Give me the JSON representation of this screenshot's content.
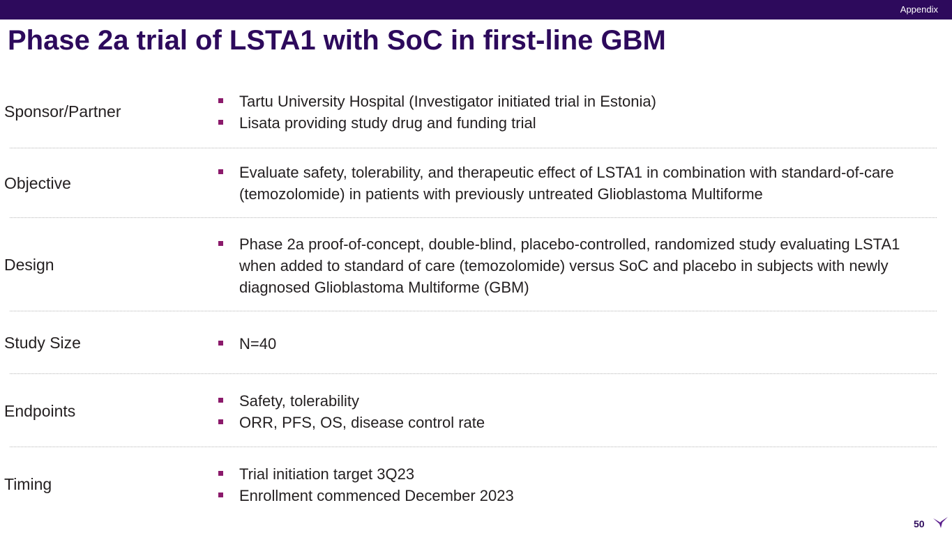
{
  "header": {
    "section_label": "Appendix"
  },
  "title": "Phase 2a trial of LSTA1 with SoC in first-line GBM",
  "rows": [
    {
      "label": "Sponsor/Partner",
      "bullets": [
        "Tartu University Hospital (Investigator initiated trial in Estonia)",
        "Lisata providing study drug and funding trial"
      ]
    },
    {
      "label": "Objective",
      "bullets": [
        "Evaluate safety, tolerability, and therapeutic effect of LSTA1 in combination with standard-of-care (temozolomide) in patients with previously untreated Glioblastoma Multiforme"
      ]
    },
    {
      "label": "Design",
      "bullets": [
        "Phase 2a proof-of-concept, double-blind, placebo-controlled, randomized study evaluating LSTA1 when added to standard of care (temozolomide) versus SoC and placebo in subjects with newly diagnosed Glioblastoma Multiforme (GBM)"
      ]
    },
    {
      "label": "Study Size",
      "bullets": [
        "N=40"
      ]
    },
    {
      "label": "Endpoints",
      "bullets": [
        "Safety, tolerability",
        "ORR, PFS, OS, disease control rate"
      ]
    },
    {
      "label": "Timing",
      "bullets": [
        "Trial initiation target 3Q23",
        "Enrollment commenced December 2023"
      ]
    }
  ],
  "footer": {
    "page_number": "50",
    "logo_icon": "lisata-bird-logo-icon"
  },
  "colors": {
    "brand_purple": "#2d0a5c",
    "bullet_magenta": "#8b1a6b",
    "divider": "#b5b5b5"
  }
}
